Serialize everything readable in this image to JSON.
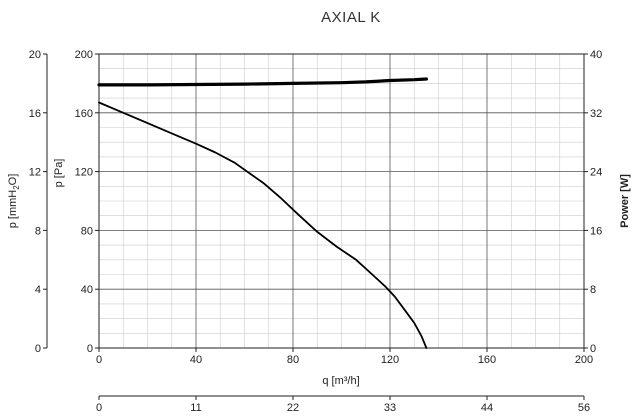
{
  "chart_data": {
    "type": "line",
    "title": "AXIAL K",
    "xlabel": "q [m³/h]",
    "secondary_xlabel": "",
    "ylabel_left_outer": "p [mmH",
    "ylabel_left_outer_sub": "2",
    "ylabel_left_outer_end": "O]",
    "ylabel_left_inner": "p [Pa]",
    "ylabel_right": "Power [W]",
    "xlim": [
      0,
      200
    ],
    "x_ticks": [
      0,
      40,
      80,
      120,
      160,
      200
    ],
    "x2_ticks": [
      0,
      11,
      22,
      33,
      44,
      56
    ],
    "ylim_pa": [
      0,
      200
    ],
    "y_ticks_pa": [
      0,
      40,
      80,
      120,
      160,
      200
    ],
    "y_ticks_mmh2o": [
      0,
      4,
      8,
      12,
      16,
      20
    ],
    "ylim_power": [
      0,
      40
    ],
    "y_ticks_power": [
      0,
      8,
      16,
      24,
      32,
      40
    ],
    "grid": true,
    "series": [
      {
        "axis": "pressure",
        "x": [
          0,
          10,
          20,
          30,
          40,
          48,
          56,
          62,
          68,
          75,
          82,
          90,
          98,
          106,
          112,
          118,
          122,
          126,
          130,
          133,
          135
        ],
        "y": [
          167,
          160,
          153,
          146,
          139,
          133,
          126,
          119,
          112,
          102,
          91,
          79,
          69,
          60,
          51,
          42,
          35,
          26,
          17,
          8,
          0
        ]
      },
      {
        "axis": "power",
        "x": [
          0,
          20,
          40,
          60,
          80,
          100,
          110,
          120,
          130,
          135
        ],
        "y": [
          35.8,
          35.8,
          35.85,
          35.9,
          36.0,
          36.1,
          36.2,
          36.4,
          36.5,
          36.6
        ]
      }
    ]
  }
}
